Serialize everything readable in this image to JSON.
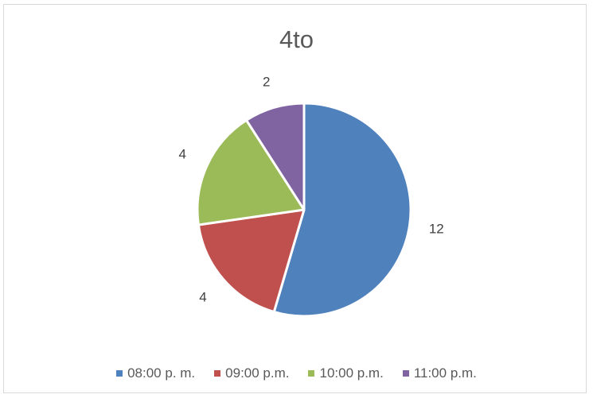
{
  "chart_data": {
    "type": "pie",
    "title": "4to",
    "categories": [
      "08:00 p. m.",
      "09:00 p.m.",
      "10:00 p.m.",
      "11:00 p.m."
    ],
    "values": [
      12,
      4,
      4,
      2
    ],
    "colors": [
      "#4f81bd",
      "#c0504d",
      "#9bbb59",
      "#8064a2"
    ],
    "data_labels": [
      "12",
      "4",
      "4",
      "2"
    ],
    "legend_position": "bottom",
    "start_angle_deg": 0,
    "direction": "clockwise"
  }
}
